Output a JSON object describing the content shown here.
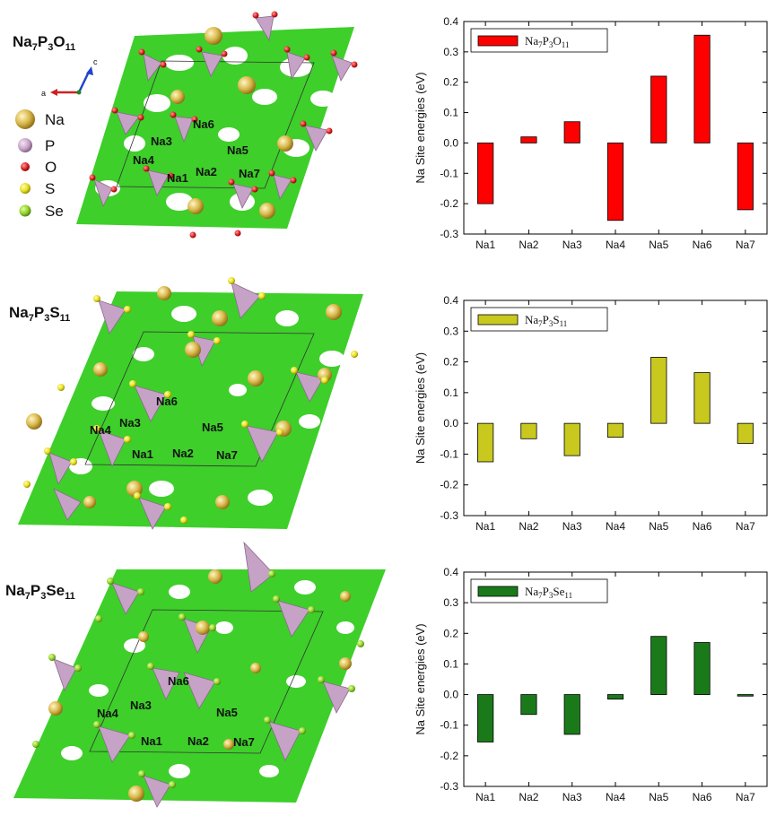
{
  "structures": [
    {
      "formula": {
        "a": "Na",
        "s1": "7",
        "b": "P",
        "s2": "3",
        "c": "O",
        "s3": "11"
      },
      "sites": [
        "Na1",
        "Na2",
        "Na3",
        "Na4",
        "Na5",
        "Na6",
        "Na7"
      ],
      "axis_labels": {
        "a": "a",
        "c": "c"
      },
      "legend": [
        {
          "label": "Na",
          "color": "#d9b84a"
        },
        {
          "label": "P",
          "color": "#c6a2c6"
        },
        {
          "label": "O",
          "color": "#dd2222"
        },
        {
          "label": "S",
          "color": "#e6dc1e"
        },
        {
          "label": "Se",
          "color": "#8fcf2a"
        }
      ]
    },
    {
      "formula": {
        "a": "Na",
        "s1": "7",
        "b": "P",
        "s2": "3",
        "c": "S",
        "s3": "11"
      },
      "sites": [
        "Na1",
        "Na2",
        "Na3",
        "Na4",
        "Na5",
        "Na6",
        "Na7"
      ]
    },
    {
      "formula": {
        "a": "Na",
        "s1": "7",
        "b": "P",
        "s2": "3",
        "c": "Se",
        "s3": "11"
      },
      "sites": [
        "Na1",
        "Na2",
        "Na3",
        "Na4",
        "Na5",
        "Na6",
        "Na7"
      ]
    }
  ],
  "chart_data": [
    {
      "type": "bar",
      "categories": [
        "Na1",
        "Na2",
        "Na3",
        "Na4",
        "Na5",
        "Na6",
        "Na7"
      ],
      "series": [
        {
          "name": "Na7P3O11",
          "values": [
            -0.2,
            0.02,
            0.07,
            -0.255,
            0.22,
            0.355,
            -0.22
          ]
        }
      ],
      "legend_parts": {
        "a": "Na",
        "s1": "7",
        "b": "P",
        "s2": "3",
        "c": "O",
        "s3": "11"
      },
      "ylabel": "Na Site energies (eV)",
      "ylim": [
        -0.3,
        0.4
      ],
      "yticks": [
        "-0.3",
        "-0.2",
        "-0.1",
        "0.0",
        "0.1",
        "0.2",
        "0.3",
        "0.4"
      ],
      "color": "#ff0000",
      "legend_position": "top-left"
    },
    {
      "type": "bar",
      "categories": [
        "Na1",
        "Na2",
        "Na3",
        "Na4",
        "Na5",
        "Na6",
        "Na7"
      ],
      "series": [
        {
          "name": "Na7P3S11",
          "values": [
            -0.125,
            -0.05,
            -0.105,
            -0.045,
            0.215,
            0.165,
            -0.065
          ]
        }
      ],
      "legend_parts": {
        "a": "Na",
        "s1": "7",
        "b": "P",
        "s2": "3",
        "c": "S",
        "s3": "11"
      },
      "ylabel": "Na Site energies (eV)",
      "ylim": [
        -0.3,
        0.4
      ],
      "yticks": [
        "-0.3",
        "-0.2",
        "-0.1",
        "0.0",
        "0.1",
        "0.2",
        "0.3",
        "0.4"
      ],
      "color": "#c8c81e",
      "legend_position": "top-left"
    },
    {
      "type": "bar",
      "categories": [
        "Na1",
        "Na2",
        "Na3",
        "Na4",
        "Na5",
        "Na6",
        "Na7"
      ],
      "series": [
        {
          "name": "Na7P3Se11",
          "values": [
            -0.155,
            -0.065,
            -0.13,
            -0.015,
            0.19,
            0.17,
            -0.005
          ]
        }
      ],
      "legend_parts": {
        "a": "Na",
        "s1": "7",
        "b": "P",
        "s2": "3",
        "c": "Se",
        "s3": "11"
      },
      "ylabel": "Na Site energies (eV)",
      "ylim": [
        -0.3,
        0.4
      ],
      "yticks": [
        "-0.3",
        "-0.2",
        "-0.1",
        "0.0",
        "0.1",
        "0.2",
        "0.3",
        "0.4"
      ],
      "color": "#1a7a1a",
      "legend_position": "top-left"
    }
  ]
}
